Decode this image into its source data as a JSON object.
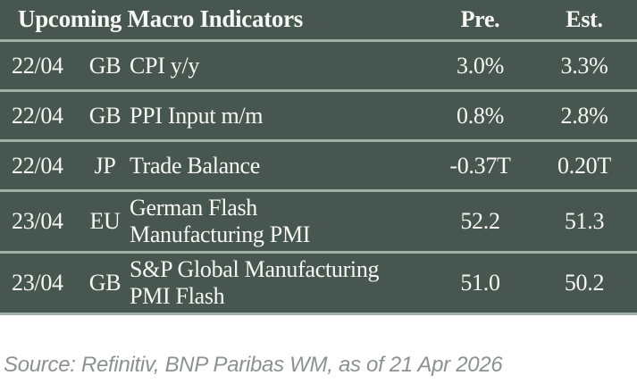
{
  "chart_data": {
    "type": "table",
    "title": "Upcoming Macro Indicators",
    "header": {
      "pre": "Pre.",
      "est": "Est."
    },
    "rows": [
      {
        "date": "22/04",
        "country": "GB",
        "indicator": "CPI y/y",
        "pre": "3.0%",
        "est": "3.3%"
      },
      {
        "date": "22/04",
        "country": "GB",
        "indicator": "PPI Input m/m",
        "pre": "0.8%",
        "est": "2.8%"
      },
      {
        "date": "22/04",
        "country": "JP",
        "indicator": "Trade Balance",
        "pre": "-0.37T",
        "est": "0.20T"
      },
      {
        "date": "23/04",
        "country": "EU",
        "indicator": "German Flash\nManufacturing PMI",
        "pre": "52.2",
        "est": "51.3"
      },
      {
        "date": "23/04",
        "country": "GB",
        "indicator": "S&P Global Manufacturing\nPMI Flash",
        "pre": "51.0",
        "est": "50.2"
      }
    ],
    "layout": {
      "grid": "horizontal-row-separators",
      "legend": "none"
    }
  },
  "footer": {
    "source": "Source: Refinitiv, BNP Paribas WM, as of 21 Apr 2026"
  },
  "colors": {
    "table_background": "#475650",
    "row_separator": "#a0b0a4",
    "table_text": "#f6f7f3",
    "source_text": "#8f9190",
    "page_background": "#ffffff"
  }
}
